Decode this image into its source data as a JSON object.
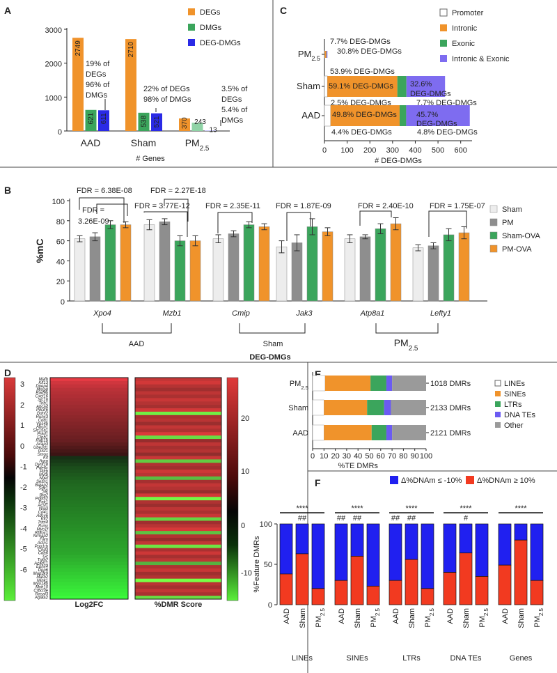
{
  "colors": {
    "deg": "#F0932B",
    "dmg": "#3BA55C",
    "degdmg": "#2A2AE6",
    "promoter": "#FFFFFF",
    "intronic": "#F0932B",
    "exonic": "#3BA55C",
    "intronic_exonic": "#7E6CF0",
    "sham": "#EDEDED",
    "pm": "#8E8E8E",
    "sham_ova": "#3BA55C",
    "pm_ova": "#F0932B",
    "lines": "#FFFFFF",
    "sines": "#F0932B",
    "ltrs": "#3BA55C",
    "dna_tes": "#6B5BF2",
    "other": "#9A9A9A",
    "neg": "#2020F0",
    "pos": "#F23A20"
  },
  "panels": {
    "a": "A",
    "b": "B",
    "c": "C",
    "d": "D",
    "e": "E",
    "f": "F"
  },
  "chart_data": [
    {
      "id": "A",
      "type": "bar",
      "categories": [
        "AAD",
        "Sham",
        "PM2.5"
      ],
      "xlabel": "# Genes",
      "ylim": [
        0,
        3000
      ],
      "yticks": [
        0,
        1000,
        2000,
        3000
      ],
      "series": [
        {
          "name": "DEGs",
          "values": [
            2749,
            2710,
            370
          ]
        },
        {
          "name": "DMGs",
          "values": [
            621,
            538,
            243
          ]
        },
        {
          "name": "DEG-DMGs",
          "values": [
            611,
            521,
            13
          ]
        }
      ],
      "value_labels": [
        "2749",
        "621",
        "611",
        "2710",
        "538",
        "521",
        "370",
        "243",
        "13"
      ],
      "annotations": [
        [
          "19% of",
          "DEGs",
          "96% of",
          "DMGs"
        ],
        [
          "22% of DEGs",
          "98% of DMGs"
        ],
        [
          "3.5% of",
          "DEGs",
          "5.4% of",
          "DMGs"
        ]
      ]
    },
    {
      "id": "C",
      "type": "bar",
      "orientation": "horizontal-stacked",
      "categories": [
        "PM2.5",
        "Sham",
        "AAD"
      ],
      "xlabel": "# DEG-DMGs",
      "xlim": [
        0,
        650
      ],
      "xticks": [
        0,
        100,
        200,
        300,
        400,
        500,
        600
      ],
      "legend": [
        "Promoter",
        "Intronic",
        "Exonic",
        "Intronic & Exonic"
      ],
      "series": [
        {
          "name": "Promoter",
          "values": [
            1,
            13,
            27
          ]
        },
        {
          "name": "Intronic",
          "values": [
            7,
            308,
            304
          ]
        },
        {
          "name": "Exonic",
          "values": [
            1,
            40,
            29
          ]
        },
        {
          "name": "Intronic & Exonic",
          "values": [
            4,
            170,
            280
          ]
        }
      ],
      "labels": [
        "7.7% DEG-DMGs",
        "30.8% DEG-DMGs",
        "53.9% DEG-DMGs",
        "59.1% DEG-DMGs",
        "32.6%",
        "DEG-DMGs",
        "2.5% DEG-DMGs",
        "7.7% DEG-DMGs",
        "49.8% DEG-DMGs",
        "45.7%",
        "DEG-DMGs",
        "4.4% DEG-DMGs",
        "4.8% DEG-DMGs"
      ]
    },
    {
      "id": "B",
      "type": "bar",
      "categories": [
        "Xpo4",
        "Mzb1",
        "Cmip",
        "Jak3",
        "Atp8a1",
        "Lefty1"
      ],
      "ylabel": "%mC",
      "ylim": [
        0,
        100
      ],
      "yticks": [
        0,
        20,
        40,
        60,
        80,
        100
      ],
      "series": [
        {
          "name": "Sham",
          "values": [
            62,
            76,
            62,
            54,
            62,
            53
          ],
          "err": [
            3,
            5,
            4,
            6,
            4,
            3
          ]
        },
        {
          "name": "PM",
          "values": [
            64,
            79,
            67,
            58,
            64,
            55
          ],
          "err": [
            4,
            3,
            3,
            8,
            2,
            3
          ]
        },
        {
          "name": "Sham-OVA",
          "values": [
            76,
            60,
            76,
            74,
            72,
            66
          ],
          "err": [
            4,
            5,
            3,
            8,
            5,
            6
          ]
        },
        {
          "name": "PM-OVA",
          "values": [
            76,
            60,
            74,
            69,
            77,
            68
          ],
          "err": [
            3,
            5,
            3,
            4,
            6,
            6
          ]
        }
      ],
      "fdr": [
        "FDR = 6.38E-08",
        "FDR =",
        "3.26E-09",
        "FDR = 2.27E-18",
        "FDR = 3.77E-12",
        "FDR = 2.35E-11",
        "FDR = 1.87E-09",
        "FDR = 2.40E-10",
        "FDR = 1.75E-07"
      ],
      "groups": [
        "AAD",
        "Sham",
        "PM2.5"
      ],
      "title": "DEG-DMGs"
    },
    {
      "id": "D",
      "type": "heatmap",
      "columns": [
        "Log2FC",
        "%DMR Score"
      ],
      "colorbar_left": [
        "3",
        "2",
        "1",
        "0",
        "-1",
        "-2",
        "-3",
        "-4",
        "-5",
        "-6"
      ],
      "colorbar_right": [
        "20",
        "10",
        "0",
        "-10"
      ],
      "genes": [
        "Mafb",
        "Klf13",
        "Dpep4",
        "Mmp8",
        "Rad9b",
        "Cxcl16",
        "Slc16",
        "Trib1",
        "Abca4",
        "Pik3r6",
        "Gdnf2",
        "Runx3",
        "Cd81",
        "Vps4b",
        "Abcb1",
        "Slc15a1",
        "Prkd1",
        "Clpb1",
        "Rap1b",
        "Acap3",
        "Ube2d1",
        "Gtsf1",
        "Smox",
        "Kit",
        "Agrp",
        "Dyrk18",
        "Pde6c",
        "Pilrb",
        "Mytb",
        "Ngef",
        "Sesn1",
        "Baiap2",
        "Sgk1",
        "Slk",
        "Btg2",
        "Pdlim2",
        "Pak1",
        "Acsl1",
        "Wasl",
        "Cd41",
        "Adcy6",
        "Kit2",
        "Trim4",
        "Runx",
        "Myo1f",
        "Rbfox1",
        "Nrmap2",
        "Fam",
        "Actn1",
        "Ppp1rb",
        "Chd3",
        "Cdh6",
        "Gc",
        "Tgfb2",
        "Acad11",
        "Ephx4",
        "Dpp6",
        "Map3k9",
        "Mafb2",
        "Mink1",
        "Myo18b",
        "Myh10",
        "Crbcl3e",
        "Rasal3",
        "Atp8a2"
      ],
      "logfc": [
        3.1,
        2.7,
        2.5,
        2.3,
        2.2,
        2.1,
        2.0,
        1.9,
        1.8,
        1.7,
        1.6,
        1.5,
        1.4,
        1.3,
        1.2,
        1.1,
        1.0,
        0.9,
        0.8,
        0.6,
        0.4,
        0.2,
        0.0,
        -0.3,
        -0.6,
        -0.9,
        -1.2,
        -1.4,
        -1.6,
        -1.8,
        -2.0,
        -2.1,
        -2.2,
        -2.3,
        -2.4,
        -2.5,
        -2.6,
        -2.7,
        -2.8,
        -2.9,
        -3.0,
        -3.1,
        -3.2,
        -3.3,
        -3.4,
        -3.5,
        -3.6,
        -3.7,
        -3.8,
        -3.9,
        -4.0,
        -4.1,
        -4.3,
        -4.5,
        -4.7,
        -4.9,
        -5.1,
        -5.3,
        -5.5,
        -5.7,
        -5.9,
        -6.1,
        -6.3,
        -6.5,
        -6.8
      ],
      "dmr": [
        15,
        18,
        12,
        8,
        14,
        10,
        16,
        12,
        9,
        18,
        -14,
        10,
        13,
        7,
        15,
        11,
        20,
        -12,
        6,
        14,
        9,
        12,
        5,
        16,
        -10,
        11,
        8,
        17,
        13,
        -8,
        9,
        15,
        12,
        6,
        18,
        -15,
        11,
        7,
        14,
        10,
        16,
        -11,
        8,
        13,
        19,
        -9,
        12,
        6,
        15,
        -13,
        10,
        17,
        9,
        14,
        -7,
        11,
        16,
        8,
        12,
        -16,
        13,
        9,
        15,
        10,
        -12
      ]
    },
    {
      "id": "E",
      "type": "bar",
      "orientation": "horizontal-stacked",
      "categories": [
        "PM2.5",
        "Sham",
        "AAD"
      ],
      "xlabel": "%TE DMRs",
      "xlim": [
        0,
        100
      ],
      "xticks": [
        0,
        10,
        20,
        30,
        40,
        50,
        60,
        70,
        80,
        90,
        100
      ],
      "legend": [
        "LINEs",
        "SINEs",
        "LTRs",
        "DNA TEs",
        "Other"
      ],
      "series": [
        {
          "name": "LINEs",
          "values": [
            11,
            10,
            10
          ]
        },
        {
          "name": "SINEs",
          "values": [
            40,
            38,
            42
          ]
        },
        {
          "name": "LTRs",
          "values": [
            14,
            15,
            13
          ]
        },
        {
          "name": "DNA TEs",
          "values": [
            5,
            6,
            5
          ]
        },
        {
          "name": "Other",
          "values": [
            30,
            31,
            30
          ]
        }
      ],
      "totals": [
        "1018 DMRs",
        "2133 DMRs",
        "2121 DMRs"
      ]
    },
    {
      "id": "F",
      "type": "bar",
      "orientation": "stacked-100",
      "ylabel": "%Feature DMRs",
      "ylim": [
        0,
        100
      ],
      "yticks": [
        0,
        50,
        100
      ],
      "legend": [
        "Δ%DNAm ≤ -10%",
        "Δ%DNAm ≥ 10%"
      ],
      "groups": [
        "LINEs",
        "SINEs",
        "LTRs",
        "DNA TEs",
        "Genes"
      ],
      "categories": [
        "AAD",
        "Sham",
        "PM2.5"
      ],
      "increase_values": [
        [
          38,
          63,
          20
        ],
        [
          30,
          60,
          23
        ],
        [
          30,
          56,
          20
        ],
        [
          40,
          64,
          35
        ],
        [
          49,
          80,
          30
        ]
      ],
      "significance": [
        "****",
        "****",
        "****",
        "****",
        "****"
      ],
      "hash_marks": [
        [
          "",
          "##",
          ""
        ],
        [
          "##",
          "##",
          ""
        ],
        [
          "##",
          "##",
          ""
        ],
        [
          "",
          "#",
          ""
        ],
        [
          "",
          "",
          ""
        ]
      ]
    }
  ]
}
